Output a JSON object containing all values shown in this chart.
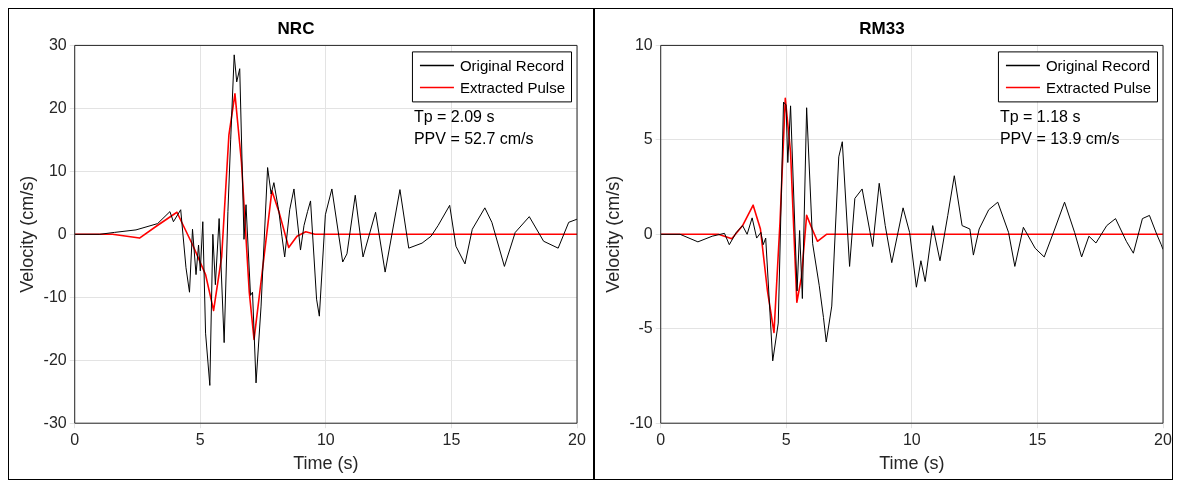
{
  "chart_data": [
    {
      "type": "line",
      "title": "NRC",
      "xlabel": "Time (s)",
      "ylabel": "Velocity (cm/s)",
      "xlim": [
        0,
        20
      ],
      "xticks": [
        0,
        5,
        10,
        15,
        20
      ],
      "ylim": [
        -30,
        30
      ],
      "yticks": [
        -30,
        -20,
        -10,
        0,
        10,
        20,
        30
      ],
      "grid": true,
      "legend": "top right",
      "marker": "none",
      "line_style": "solid",
      "annotations": [
        "Tp = 2.09 s",
        "PPV = 52.7 cm/s"
      ],
      "series": [
        {
          "name": "Original Record",
          "color": "#000000",
          "x": [
            0,
            1,
            1.58,
            2.44,
            3.3,
            3.79,
            3.93,
            4.22,
            4.43,
            4.57,
            4.69,
            4.83,
            4.93,
            5.0,
            5.1,
            5.21,
            5.38,
            5.5,
            5.6,
            5.75,
            5.95,
            6.1,
            6.21,
            6.35,
            6.45,
            6.57,
            6.74,
            6.82,
            7.0,
            7.08,
            7.22,
            7.42,
            7.68,
            7.82,
            7.93,
            8.13,
            8.25,
            8.36,
            8.56,
            8.73,
            8.99,
            9.13,
            9.27,
            9.39,
            9.63,
            9.74,
            9.98,
            10.24,
            10.67,
            10.84,
            11.17,
            11.48,
            11.98,
            12.36,
            12.95,
            13.3,
            13.83,
            14.19,
            14.47,
            14.93,
            15.18,
            15.54,
            15.83,
            16.33,
            16.61,
            17.11,
            17.54,
            18.1,
            18.67,
            19.25,
            19.67,
            20
          ],
          "values": [
            0,
            0,
            0.3,
            0.7,
            1.7,
            3.6,
            2,
            3.9,
            -5.3,
            -9.2,
            0.8,
            -6.4,
            -1.7,
            -5.8,
            2,
            -15.7,
            -24,
            0,
            -8,
            2.5,
            -17.2,
            3.6,
            15,
            28.5,
            24.2,
            26.3,
            -0.8,
            4.7,
            -9.7,
            -9.2,
            -23.6,
            -11.4,
            10.6,
            6.4,
            8.2,
            3.6,
            -0.3,
            -3.6,
            3.9,
            7.2,
            -2.5,
            1.4,
            3.6,
            5.3,
            -10.3,
            -13,
            3.1,
            7.2,
            -4.4,
            -3.1,
            6.2,
            -3.6,
            3.5,
            -6,
            7.1,
            -2.2,
            -1.4,
            -0.3,
            1.4,
            4.6,
            -1.9,
            -4.7,
            0.8,
            4.2,
            1.9,
            -5.1,
            0.3,
            2.8,
            -1.1,
            -2.2,
            1.9,
            2.4
          ]
        },
        {
          "name": "Extracted Pulse",
          "color": "#ff0000",
          "x": [
            0,
            1.5,
            2.58,
            3.29,
            4.07,
            4.72,
            5.21,
            5.53,
            5.85,
            6.14,
            6.38,
            6.64,
            6.95,
            7.14,
            7.42,
            7.85,
            8.13,
            8.52,
            8.85,
            9.2,
            9.56,
            20
          ],
          "values": [
            0,
            0,
            -0.6,
            1.4,
            3.5,
            -1.9,
            -6.4,
            -12.1,
            -3.6,
            15.8,
            22.3,
            11.4,
            -9.2,
            -16.7,
            -7.5,
            6.9,
            3.6,
            -2.1,
            -0.3,
            0.4,
            0,
            0
          ]
        }
      ]
    },
    {
      "type": "line",
      "title": "RM33",
      "xlabel": "Time (s)",
      "ylabel": "Velocity (cm/s)",
      "xlim": [
        0,
        20
      ],
      "xticks": [
        0,
        5,
        10,
        15,
        20
      ],
      "ylim": [
        -10,
        10
      ],
      "yticks": [
        -10,
        -5,
        0,
        5,
        10
      ],
      "grid": true,
      "legend": "top right",
      "marker": "none",
      "line_style": "solid",
      "annotations": [
        "Tp = 1.18 s",
        "PPV = 13.9 cm/s"
      ],
      "series": [
        {
          "name": "Original Record",
          "color": "#000000",
          "x": [
            0,
            0.77,
            1.48,
            2.05,
            2.54,
            2.73,
            3.01,
            3.26,
            3.44,
            3.64,
            3.82,
            3.99,
            4.08,
            4.18,
            4.46,
            4.68,
            4.89,
            4.99,
            5.06,
            5.17,
            5.43,
            5.53,
            5.64,
            5.81,
            6.05,
            6.31,
            6.48,
            6.59,
            6.81,
            7.09,
            7.23,
            7.52,
            7.73,
            8.02,
            8.44,
            8.7,
            8.94,
            9.2,
            9.65,
            9.91,
            10.18,
            10.36,
            10.53,
            10.83,
            11.12,
            11.43,
            11.69,
            12.0,
            12.31,
            12.45,
            12.68,
            13.06,
            13.42,
            13.85,
            14.1,
            14.44,
            14.91,
            15.27,
            15.69,
            16.08,
            16.48,
            16.76,
            17.05,
            17.33,
            17.76,
            18.11,
            18.54,
            18.82,
            19.18,
            19.46,
            19.75,
            19.93,
            20
          ],
          "values": [
            0,
            0,
            -0.4,
            -0.1,
            0.05,
            -0.55,
            0.1,
            0.46,
            0,
            0.87,
            -0.2,
            0.1,
            -0.55,
            -0.2,
            -6.7,
            -4.7,
            7,
            6.85,
            3.8,
            6.8,
            -3,
            0.2,
            -3.4,
            6.7,
            -0.5,
            -2.7,
            -4.4,
            -5.7,
            -3.8,
            4.1,
            4.9,
            -1.7,
            1.9,
            2.4,
            -0.65,
            2.7,
            0.46,
            -1.5,
            1.4,
            0.1,
            -2.8,
            -1.4,
            -2.5,
            0.46,
            -1.4,
            1,
            3.1,
            0.46,
            0.28,
            -1.1,
            0.28,
            1.3,
            1.7,
            0.1,
            -1.7,
            0.37,
            -0.74,
            -1.2,
            0.28,
            1.7,
            0.1,
            -1.2,
            -0.1,
            -0.46,
            0.46,
            0.83,
            -0.37,
            -1,
            0.83,
            1,
            0,
            -0.55,
            -0.8
          ]
        },
        {
          "name": "Extracted Pulse",
          "color": "#ff0000",
          "x": [
            0,
            2.3,
            2.83,
            3.26,
            3.68,
            3.97,
            4.25,
            4.51,
            4.75,
            4.96,
            5.17,
            5.42,
            5.6,
            5.81,
            6.03,
            6.24,
            6.6,
            20
          ],
          "values": [
            0,
            0,
            -0.24,
            0.46,
            1.54,
            0.28,
            -3,
            -5.2,
            0.65,
            7.2,
            4.35,
            -3.6,
            -2.3,
            1,
            0.28,
            -0.37,
            0,
            0
          ]
        }
      ]
    }
  ]
}
